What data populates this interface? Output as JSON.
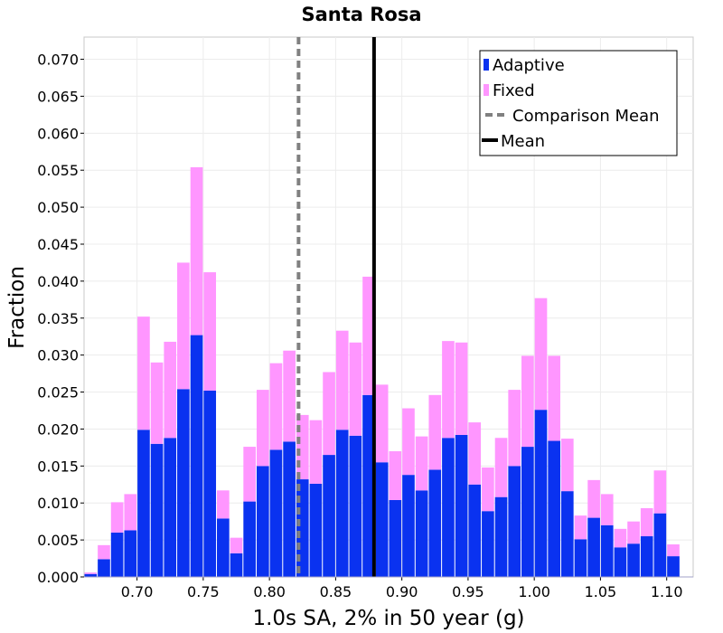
{
  "chart_data": {
    "type": "bar",
    "stacked": true,
    "title": "Santa Rosa",
    "xlabel": "1.0s SA, 2% in 50 year (g)",
    "ylabel": "Fraction",
    "xlim": [
      0.66,
      1.12
    ],
    "ylim": [
      0,
      0.073
    ],
    "bin_width": 0.01,
    "grid": true,
    "legend_position": "top-right",
    "x_ticks": [
      "0.70",
      "0.75",
      "0.80",
      "0.85",
      "0.90",
      "0.95",
      "1.00",
      "1.05",
      "1.10"
    ],
    "y_ticks": [
      "0.000",
      "0.005",
      "0.010",
      "0.015",
      "0.020",
      "0.025",
      "0.030",
      "0.035",
      "0.040",
      "0.045",
      "0.050",
      "0.055",
      "0.060",
      "0.065",
      "0.070"
    ],
    "bin_starts": [
      0.66,
      0.67,
      0.68,
      0.69,
      0.7,
      0.71,
      0.72,
      0.73,
      0.74,
      0.75,
      0.76,
      0.77,
      0.78,
      0.79,
      0.8,
      0.81,
      0.82,
      0.83,
      0.84,
      0.85,
      0.86,
      0.87,
      0.88,
      0.89,
      0.9,
      0.91,
      0.92,
      0.93,
      0.94,
      0.95,
      0.96,
      0.97,
      0.98,
      0.99,
      1.0,
      1.01,
      1.02,
      1.03,
      1.04,
      1.05,
      1.06,
      1.07,
      1.08,
      1.09,
      1.1
    ],
    "series": [
      {
        "name": "Adaptive",
        "color": "#0a32f0",
        "values": [
          0.0004,
          0.0024,
          0.006,
          0.0063,
          0.0199,
          0.018,
          0.0188,
          0.0254,
          0.0327,
          0.0252,
          0.0079,
          0.0032,
          0.0102,
          0.015,
          0.0172,
          0.0183,
          0.0132,
          0.0126,
          0.0165,
          0.0199,
          0.0191,
          0.0246,
          0.0155,
          0.0104,
          0.0138,
          0.0117,
          0.0145,
          0.0188,
          0.0192,
          0.0125,
          0.0089,
          0.0108,
          0.015,
          0.0176,
          0.0226,
          0.0184,
          0.0116,
          0.0051,
          0.008,
          0.007,
          0.004,
          0.0045,
          0.0055,
          0.0086,
          0.0028
        ]
      },
      {
        "name": "Fixed",
        "color": "#ff96ff",
        "values": [
          0.0002,
          0.0019,
          0.0041,
          0.0049,
          0.0153,
          0.011,
          0.013,
          0.0171,
          0.0227,
          0.016,
          0.0038,
          0.0021,
          0.0074,
          0.0103,
          0.0117,
          0.0123,
          0.0087,
          0.0086,
          0.0112,
          0.0134,
          0.0126,
          0.016,
          0.0105,
          0.0066,
          0.009,
          0.0073,
          0.0101,
          0.0131,
          0.0125,
          0.0084,
          0.0059,
          0.008,
          0.0103,
          0.0123,
          0.0151,
          0.0115,
          0.0071,
          0.0032,
          0.0051,
          0.0042,
          0.0025,
          0.003,
          0.0038,
          0.0058,
          0.0016
        ]
      }
    ],
    "mean_lines": [
      {
        "name": "Comparison Mean",
        "x": 0.822,
        "color": "#808080",
        "style": "dashed"
      },
      {
        "name": "Mean",
        "x": 0.879,
        "color": "#000000",
        "style": "solid"
      }
    ]
  }
}
